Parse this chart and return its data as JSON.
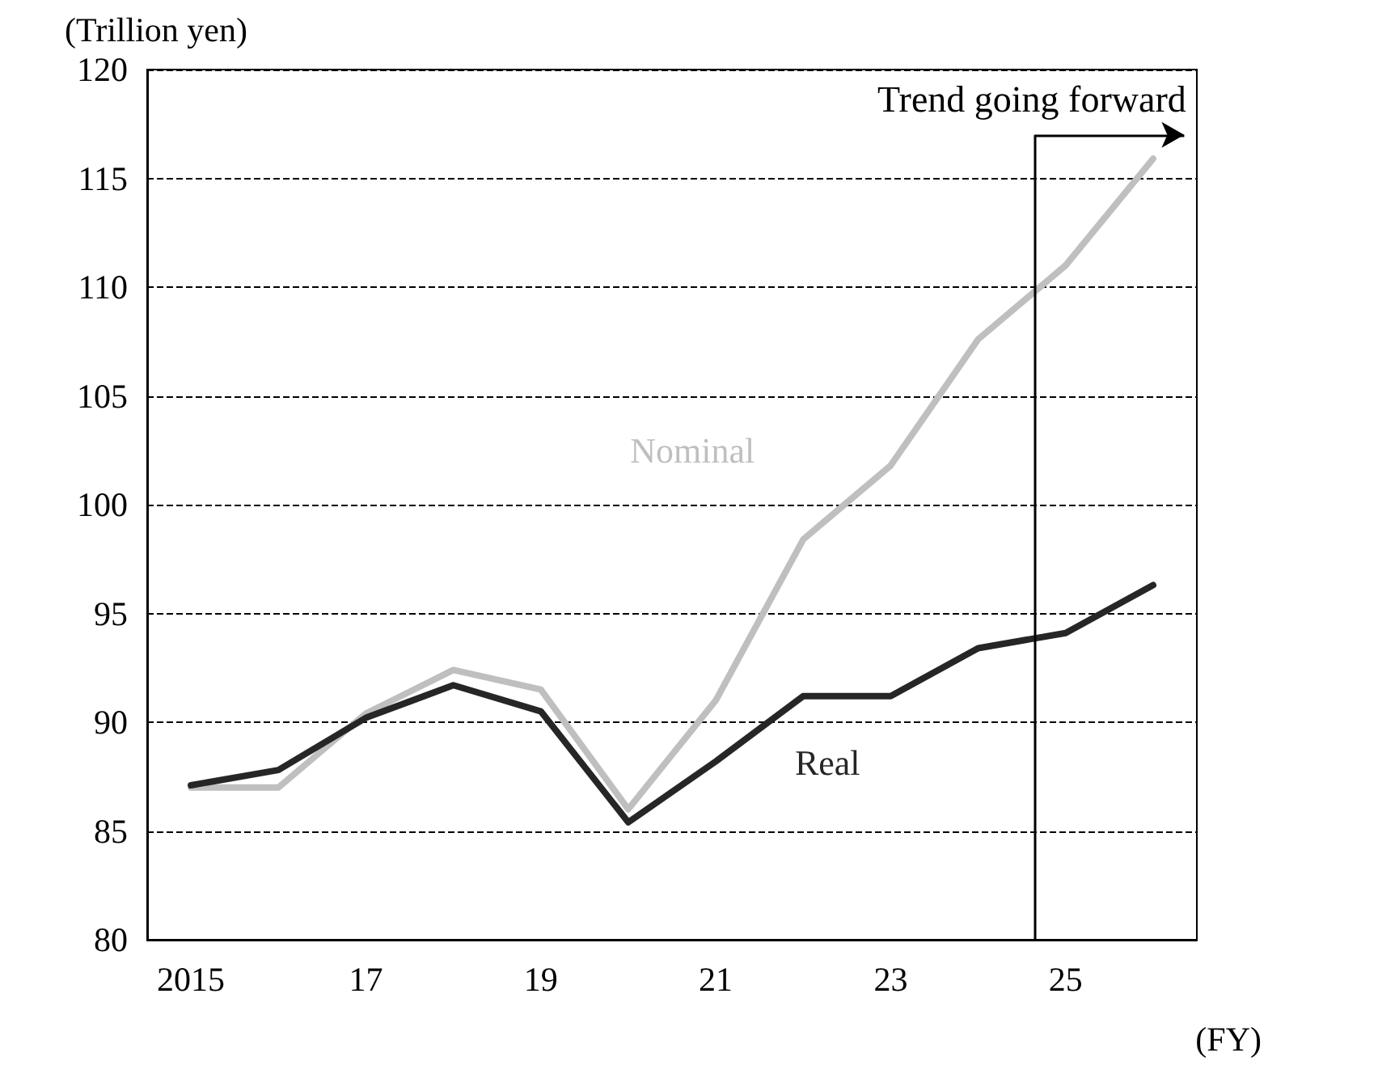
{
  "chart_data": {
    "type": "line",
    "ylabel": "(Trillion yen)",
    "xlabel": "(FY)",
    "x": [
      2015,
      2016,
      2017,
      2018,
      2019,
      2020,
      2021,
      2022,
      2023,
      2024,
      2025,
      2026
    ],
    "series": [
      {
        "name": "Nominal",
        "color": "#bfbfbf",
        "values": [
          87.0,
          87.0,
          90.4,
          92.4,
          91.5,
          86.0,
          91.0,
          98.4,
          101.8,
          107.6,
          111.0,
          115.9
        ]
      },
      {
        "name": "Real",
        "color": "#262626",
        "values": [
          87.1,
          87.8,
          90.2,
          91.7,
          90.5,
          85.4,
          88.2,
          91.2,
          91.2,
          93.4,
          94.1,
          96.3
        ]
      }
    ],
    "xlim": [
      2014.5,
      2026.5
    ],
    "xticks": [
      {
        "value": 2015,
        "label": "2015"
      },
      {
        "value": 2017,
        "label": "17"
      },
      {
        "value": 2019,
        "label": "19"
      },
      {
        "value": 2021,
        "label": "21"
      },
      {
        "value": 2023,
        "label": "23"
      },
      {
        "value": 2025,
        "label": "25"
      }
    ],
    "ylim": [
      80,
      120
    ],
    "yticks": [
      80,
      85,
      90,
      95,
      100,
      105,
      110,
      115,
      120
    ],
    "grid": "y",
    "legend": false,
    "marker": "none",
    "line_style": "solid",
    "ref_lines": [
      {
        "axis": "x",
        "value": 2024.65,
        "label": "Trend going forward",
        "color": "#000000"
      }
    ]
  }
}
